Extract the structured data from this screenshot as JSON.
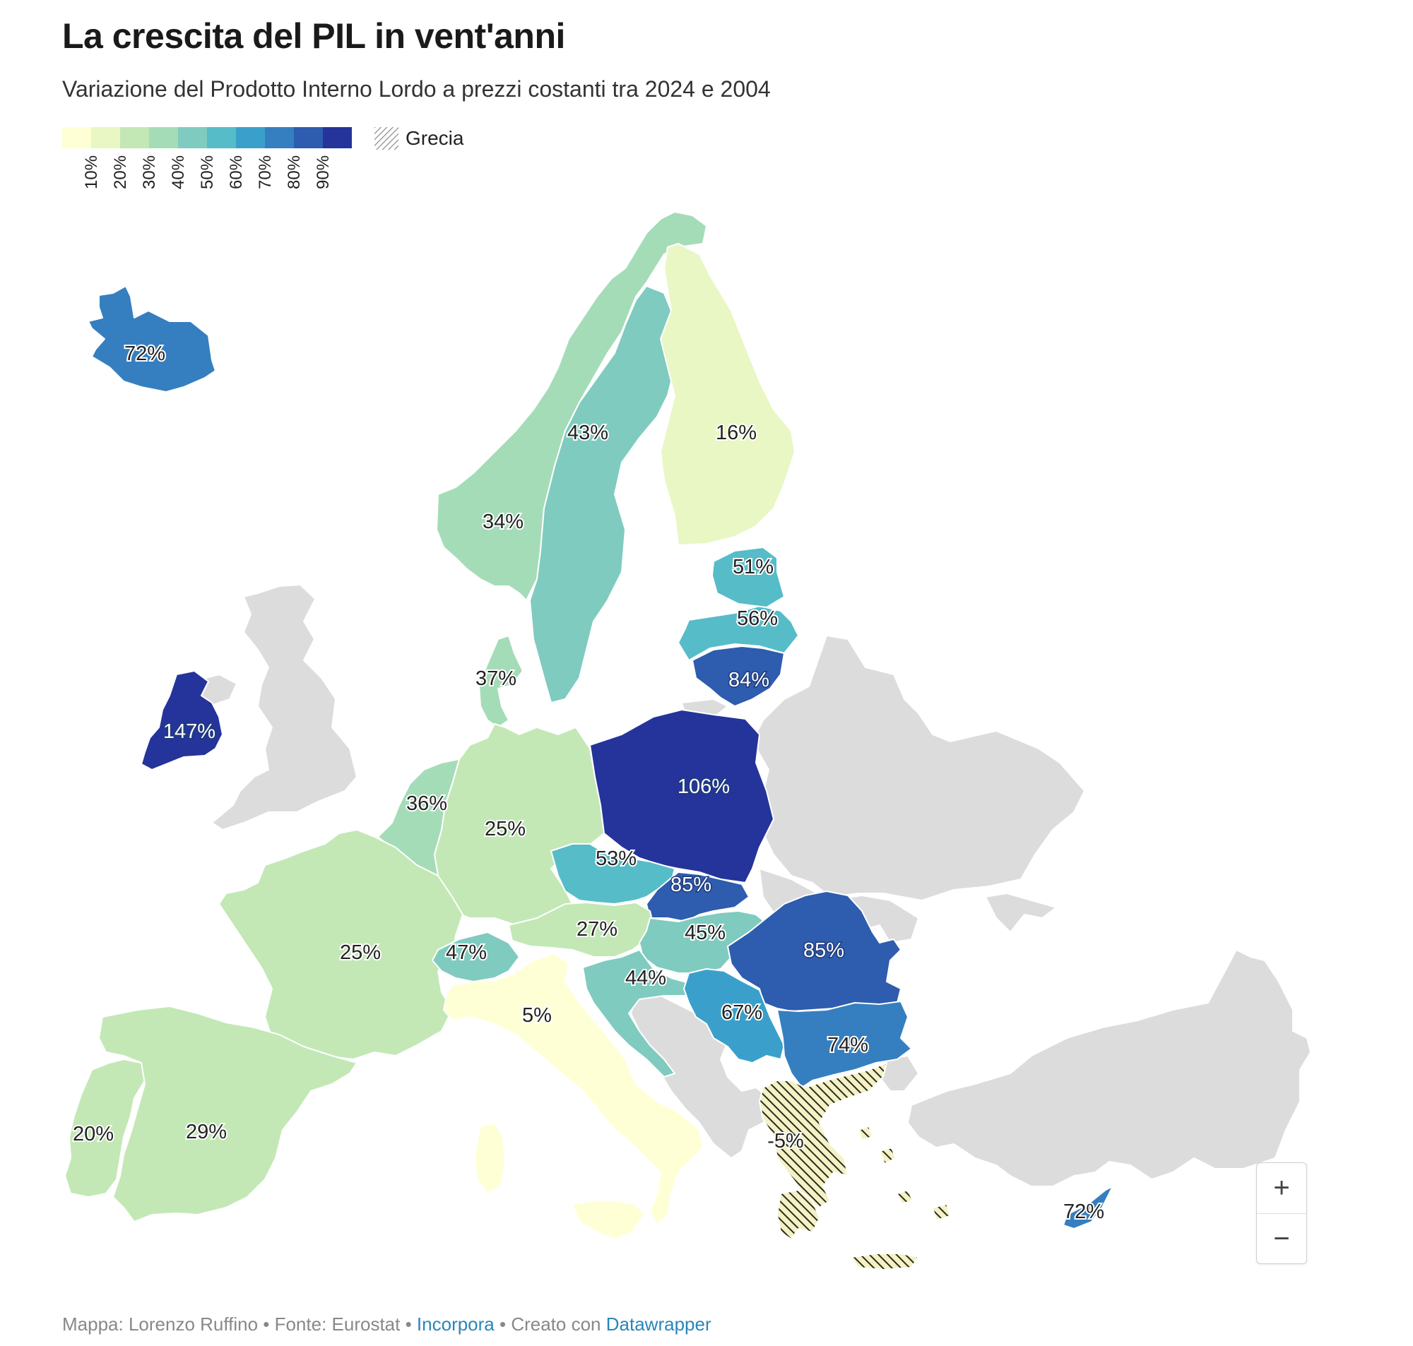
{
  "title": "La crescita del PIL in vent'anni",
  "subtitle": "Variazione del Prodotto Interno Lordo a prezzi costanti tra 2024 e 2004",
  "legend": {
    "ticks": [
      "10%",
      "20%",
      "30%",
      "40%",
      "50%",
      "60%",
      "70%",
      "80%",
      "90%"
    ],
    "colors": [
      "#ffffd6",
      "#e9f7c4",
      "#c3e8b6",
      "#a5dcb8",
      "#7fcbbf",
      "#56bcc8",
      "#3aa0cb",
      "#357fc0",
      "#2e5cae",
      "#24349a"
    ],
    "hatch_label": "Grecia"
  },
  "countries": [
    {
      "name": "Islanda",
      "label": "72%",
      "value": 72
    },
    {
      "name": "Irlanda",
      "label": "147%",
      "value": 147
    },
    {
      "name": "Norvegia",
      "label": "34%",
      "value": 34
    },
    {
      "name": "Svezia",
      "label": "43%",
      "value": 43
    },
    {
      "name": "Finlandia",
      "label": "16%",
      "value": 16
    },
    {
      "name": "Estonia",
      "label": "51%",
      "value": 51
    },
    {
      "name": "Lettonia",
      "label": "56%",
      "value": 56
    },
    {
      "name": "Lituania",
      "label": "84%",
      "value": 84
    },
    {
      "name": "Danimarca",
      "label": "37%",
      "value": 37
    },
    {
      "name": "Benelux",
      "label": "36%",
      "value": 36
    },
    {
      "name": "Germania",
      "label": "25%",
      "value": 25
    },
    {
      "name": "Polonia",
      "label": "106%",
      "value": 106
    },
    {
      "name": "Cechia",
      "label": "53%",
      "value": 53
    },
    {
      "name": "Slovacchia",
      "label": "85%",
      "value": 85
    },
    {
      "name": "Austria",
      "label": "27%",
      "value": 27
    },
    {
      "name": "Ungheria",
      "label": "45%",
      "value": 45
    },
    {
      "name": "Francia",
      "label": "25%",
      "value": 25
    },
    {
      "name": "Svizzera",
      "label": "47%",
      "value": 47
    },
    {
      "name": "Italia",
      "label": "5%",
      "value": 5
    },
    {
      "name": "Croazia",
      "label": "44%",
      "value": 44
    },
    {
      "name": "Romania",
      "label": "85%",
      "value": 85
    },
    {
      "name": "Serbia",
      "label": "67%",
      "value": 67
    },
    {
      "name": "Bulgaria",
      "label": "74%",
      "value": 74
    },
    {
      "name": "Portogallo",
      "label": "20%",
      "value": 20
    },
    {
      "name": "Spagna",
      "label": "29%",
      "value": 29
    },
    {
      "name": "Grecia",
      "label": "-5%",
      "value": -5
    },
    {
      "name": "Cipro",
      "label": "72%",
      "value": 72
    }
  ],
  "zoom": {
    "in": "+",
    "out": "−"
  },
  "footer": {
    "map_credit": "Mappa: Lorenzo Ruffino • Fonte: Eurostat •",
    "embed": "Incorpora",
    "created_with": "• Creato con",
    "tool": "Datawrapper"
  }
}
